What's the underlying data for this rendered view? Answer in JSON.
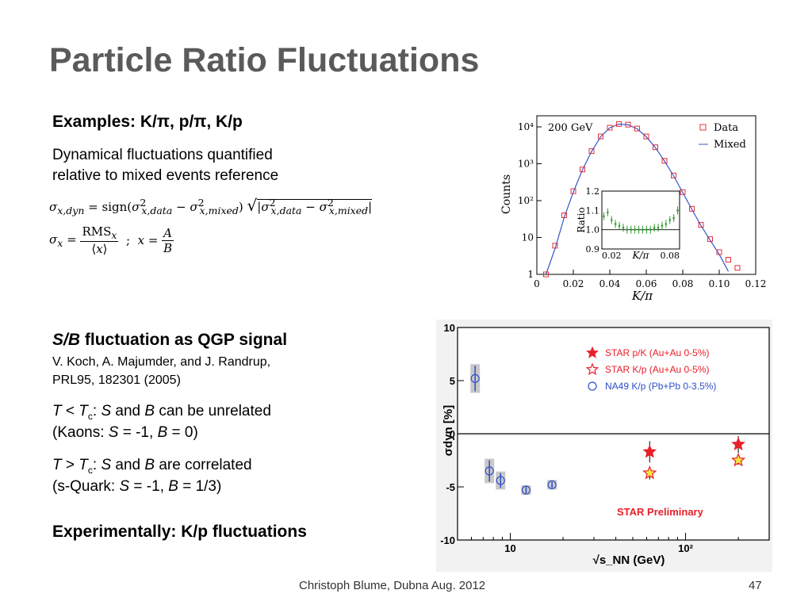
{
  "slide": {
    "title": "Particle Ratio Fluctuations",
    "examples_heading": "Examples: K/π, p/π, K/p",
    "desc_line1": "Dynamical fluctuations quantified",
    "desc_line2": "relative to mixed events reference",
    "formula1_lhs": "σx,dyn = sign(σ²x,data − σ²x,mixed) √|σ²x,data − σ²x,mixed|",
    "formula2": "σx = RMSx / ⟨x⟩ ; x = A / B",
    "sb_heading_s": "S",
    "sb_heading_slash": "/",
    "sb_heading_b": "B",
    "sb_heading_rest": " fluctuation as QGP signal",
    "ref_line1": "V. Koch, A. Majumder, and J. Randrup,",
    "ref_line2": "PRL95, 182301 (2005)",
    "case1_line1": "T < Tc: S and B can be unrelated",
    "case1_line2": "(Kaons: S = -1, B = 0)",
    "case2_line1": "T > Tc: S and B are correlated",
    "case2_line2": "(s-Quark: S = -1, B = 1/3)",
    "conclusion": "Experimentally: K/p fluctuations",
    "footer_left": "Christoph Blume, Dubna Aug. 2012",
    "footer_page": "47"
  },
  "chart_data": [
    {
      "type": "scatter",
      "label": "200 GeV",
      "xlabel": "K/π",
      "ylabel": "Counts",
      "xlim": [
        0,
        0.12
      ],
      "ylim": [
        1,
        20000
      ],
      "y_scale": "log",
      "x_ticks": [
        "0",
        "0.02",
        "0.04",
        "0.06",
        "0.08",
        "0.10",
        "0.12"
      ],
      "y_ticks": [
        "1",
        "10",
        "10²",
        "10³",
        "10⁴"
      ],
      "legend": [
        "Data",
        "Mixed"
      ],
      "legend_position": "top-right",
      "series": [
        {
          "name": "Data",
          "marker": "open-square",
          "color": "#e0303a",
          "x": [
            0.005,
            0.01,
            0.015,
            0.02,
            0.025,
            0.03,
            0.035,
            0.04,
            0.045,
            0.05,
            0.055,
            0.06,
            0.065,
            0.07,
            0.075,
            0.08,
            0.085,
            0.09,
            0.095,
            0.1,
            0.105,
            0.11
          ],
          "y": [
            1,
            6,
            40,
            180,
            700,
            2200,
            5500,
            9500,
            12000,
            11500,
            9000,
            5500,
            2800,
            1200,
            480,
            170,
            60,
            22,
            9,
            4,
            2.5,
            1.5
          ]
        },
        {
          "name": "Mixed",
          "style": "line",
          "color": "#3355cc",
          "x": [
            0.005,
            0.01,
            0.015,
            0.02,
            0.025,
            0.03,
            0.035,
            0.04,
            0.045,
            0.05,
            0.055,
            0.06,
            0.065,
            0.07,
            0.075,
            0.08,
            0.085,
            0.09,
            0.095,
            0.1,
            0.105
          ],
          "y": [
            1,
            5,
            35,
            170,
            680,
            2150,
            5400,
            9400,
            11900,
            11400,
            8900,
            5400,
            2750,
            1180,
            470,
            165,
            58,
            21,
            8.5,
            3.5,
            1.2
          ]
        }
      ],
      "inset": {
        "xlabel": "K/π",
        "ylabel": "Ratio",
        "xlim": [
          0.01,
          0.09
        ],
        "ylim": [
          0.9,
          1.2
        ],
        "x_ticks": [
          "0.02",
          "0.08"
        ],
        "y_ticks": [
          "0.9",
          "1.0",
          "1.1",
          "1.2"
        ],
        "x": [
          0.012,
          0.016,
          0.02,
          0.024,
          0.028,
          0.032,
          0.036,
          0.04,
          0.044,
          0.048,
          0.052,
          0.056,
          0.06,
          0.064,
          0.068,
          0.072,
          0.076,
          0.08,
          0.084,
          0.088
        ],
        "y": [
          1.07,
          1.09,
          1.05,
          1.03,
          1.02,
          1.01,
          1.0,
          1.0,
          1.0,
          1.0,
          1.0,
          1.0,
          1.0,
          1.01,
          1.01,
          1.02,
          1.03,
          1.05,
          1.06,
          1.1
        ]
      }
    },
    {
      "type": "scatter",
      "xlabel": "√s_NN (GeV)",
      "ylabel": "σdyn [%]",
      "x_scale": "log",
      "xlim": [
        5,
        300
      ],
      "ylim": [
        -10,
        10
      ],
      "x_ticks": [
        "10",
        "10²"
      ],
      "y_ticks": [
        "10",
        "5",
        "0",
        "-5",
        "-10"
      ],
      "legend_position": "top-right",
      "annotation": "STAR Preliminary",
      "series": [
        {
          "name": "STAR p/K  (Au+Au 0-5%)",
          "marker": "filled-star",
          "color": "#e8202a",
          "x": [
            62.4,
            200
          ],
          "y": [
            -1.7,
            -1.0
          ],
          "err": [
            1.0,
            0.8
          ]
        },
        {
          "name": "STAR K/p  (Au+Au 0-5%)",
          "marker": "open-star",
          "color": "#e8202a",
          "x": [
            62.4,
            200
          ],
          "y": [
            -3.7,
            -2.5
          ],
          "err": [
            0.6,
            0.4
          ]
        },
        {
          "name": "NA49 K/p  (Pb+Pb 0-3.5%)",
          "marker": "open-circle",
          "color": "#2f4fc8",
          "x": [
            6.3,
            7.6,
            8.8,
            12.3,
            17.3
          ],
          "y": [
            5.2,
            -3.5,
            -4.4,
            -5.3,
            -4.8
          ],
          "err": [
            1.2,
            1.0,
            0.7,
            0.3,
            0.3
          ]
        }
      ]
    }
  ]
}
